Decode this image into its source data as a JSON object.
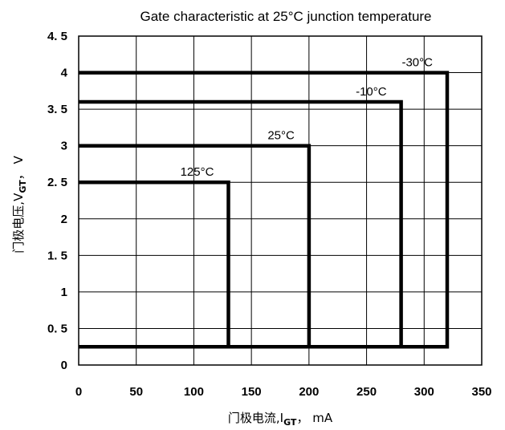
{
  "chart_data": {
    "type": "line",
    "title": "Gate characteristic at 25°C junction temperature",
    "xlabel": "门极电流,I",
    "xlabel_sub": "GT",
    "xlabel_unit": "， mA",
    "ylabel": "门极电压,V",
    "ylabel_sub": "GT",
    "ylabel_unit": "， V",
    "xlim": [
      0,
      350
    ],
    "ylim": [
      0,
      4.5
    ],
    "xticks": [
      0,
      50,
      100,
      150,
      200,
      250,
      300,
      350
    ],
    "xtick_labels": [
      "0",
      "50",
      "100",
      "150",
      "200",
      "250",
      "300",
      "350"
    ],
    "yticks": [
      0,
      0.5,
      1,
      1.5,
      2,
      2.5,
      3,
      3.5,
      4,
      4.5
    ],
    "ytick_labels": [
      "0",
      "0. 5",
      "1",
      "1. 5",
      "2",
      "2. 5",
      "3",
      "3. 5",
      "4",
      "4. 5"
    ],
    "grid": true,
    "series": [
      {
        "name": "-30°C",
        "x": [
          0,
          320,
          320,
          0
        ],
        "y": [
          4.0,
          4.0,
          0.25,
          0.25
        ]
      },
      {
        "name": "-10°C",
        "x": [
          0,
          280,
          280,
          0
        ],
        "y": [
          3.6,
          3.6,
          0.25,
          0.25
        ]
      },
      {
        "name": "25°C",
        "x": [
          0,
          200,
          200,
          0
        ],
        "y": [
          3.0,
          3.0,
          0.25,
          0.25
        ]
      },
      {
        "name": "125°C",
        "x": [
          0,
          130,
          130,
          0
        ],
        "y": [
          2.5,
          2.5,
          0.25,
          0.25
        ]
      }
    ]
  }
}
